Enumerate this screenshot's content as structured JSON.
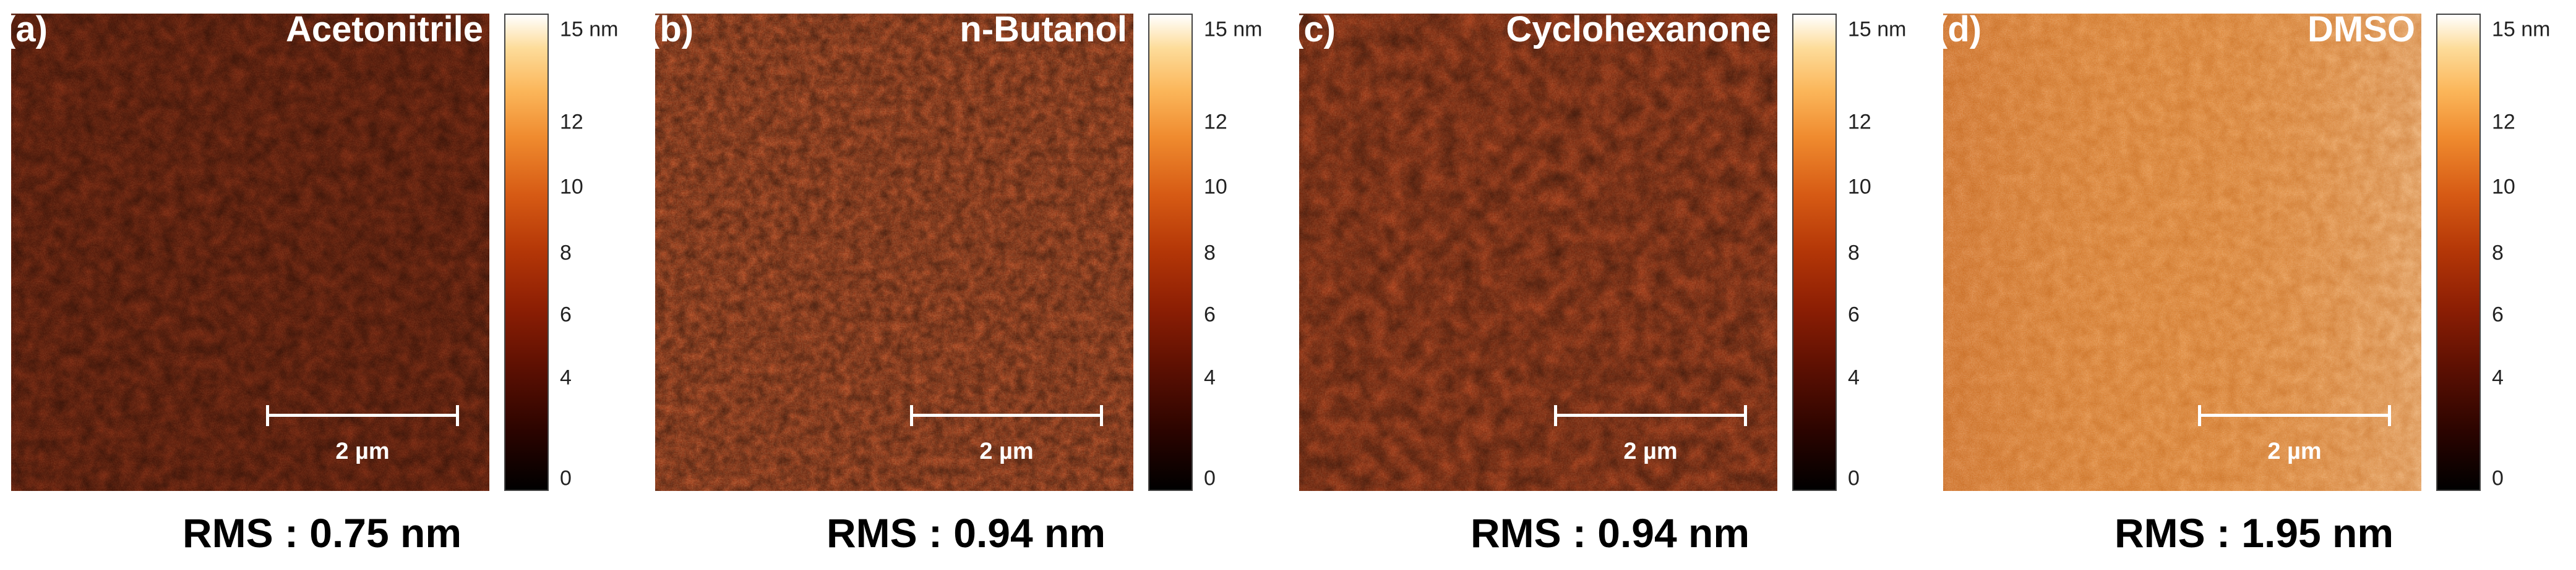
{
  "colors": {
    "colormap": [
      "#000000",
      "#5a0f02",
      "#b33607",
      "#ef8a2e",
      "#fddc9a",
      "#ffffff"
    ],
    "overlay_text": "#ffffff"
  },
  "colorbar": {
    "max_label": "15 nm",
    "ticks": [
      "12",
      "10",
      "8",
      "6",
      "4",
      "0"
    ]
  },
  "scale_bar": {
    "label": "2 µm"
  },
  "panels": [
    {
      "letter": "(a)",
      "solvent": "Acetonitrile",
      "rms": "RMS : 0.75 nm",
      "base_color": "#6e1806",
      "brightness": 0.0
    },
    {
      "letter": "(b)",
      "solvent": "n-Butanol",
      "rms": "RMS : 0.94 nm",
      "base_color": "#a83310",
      "brightness": 0.15
    },
    {
      "letter": "(c)",
      "solvent": "Cyclohexanone",
      "rms": "RMS : 0.94 nm",
      "base_color": "#a02e0c",
      "brightness": 0.1
    },
    {
      "letter": "(d)",
      "solvent": "DMSO",
      "rms": "RMS : 1.95 nm",
      "base_color": "#e2893a",
      "brightness": 0.55
    }
  ]
}
